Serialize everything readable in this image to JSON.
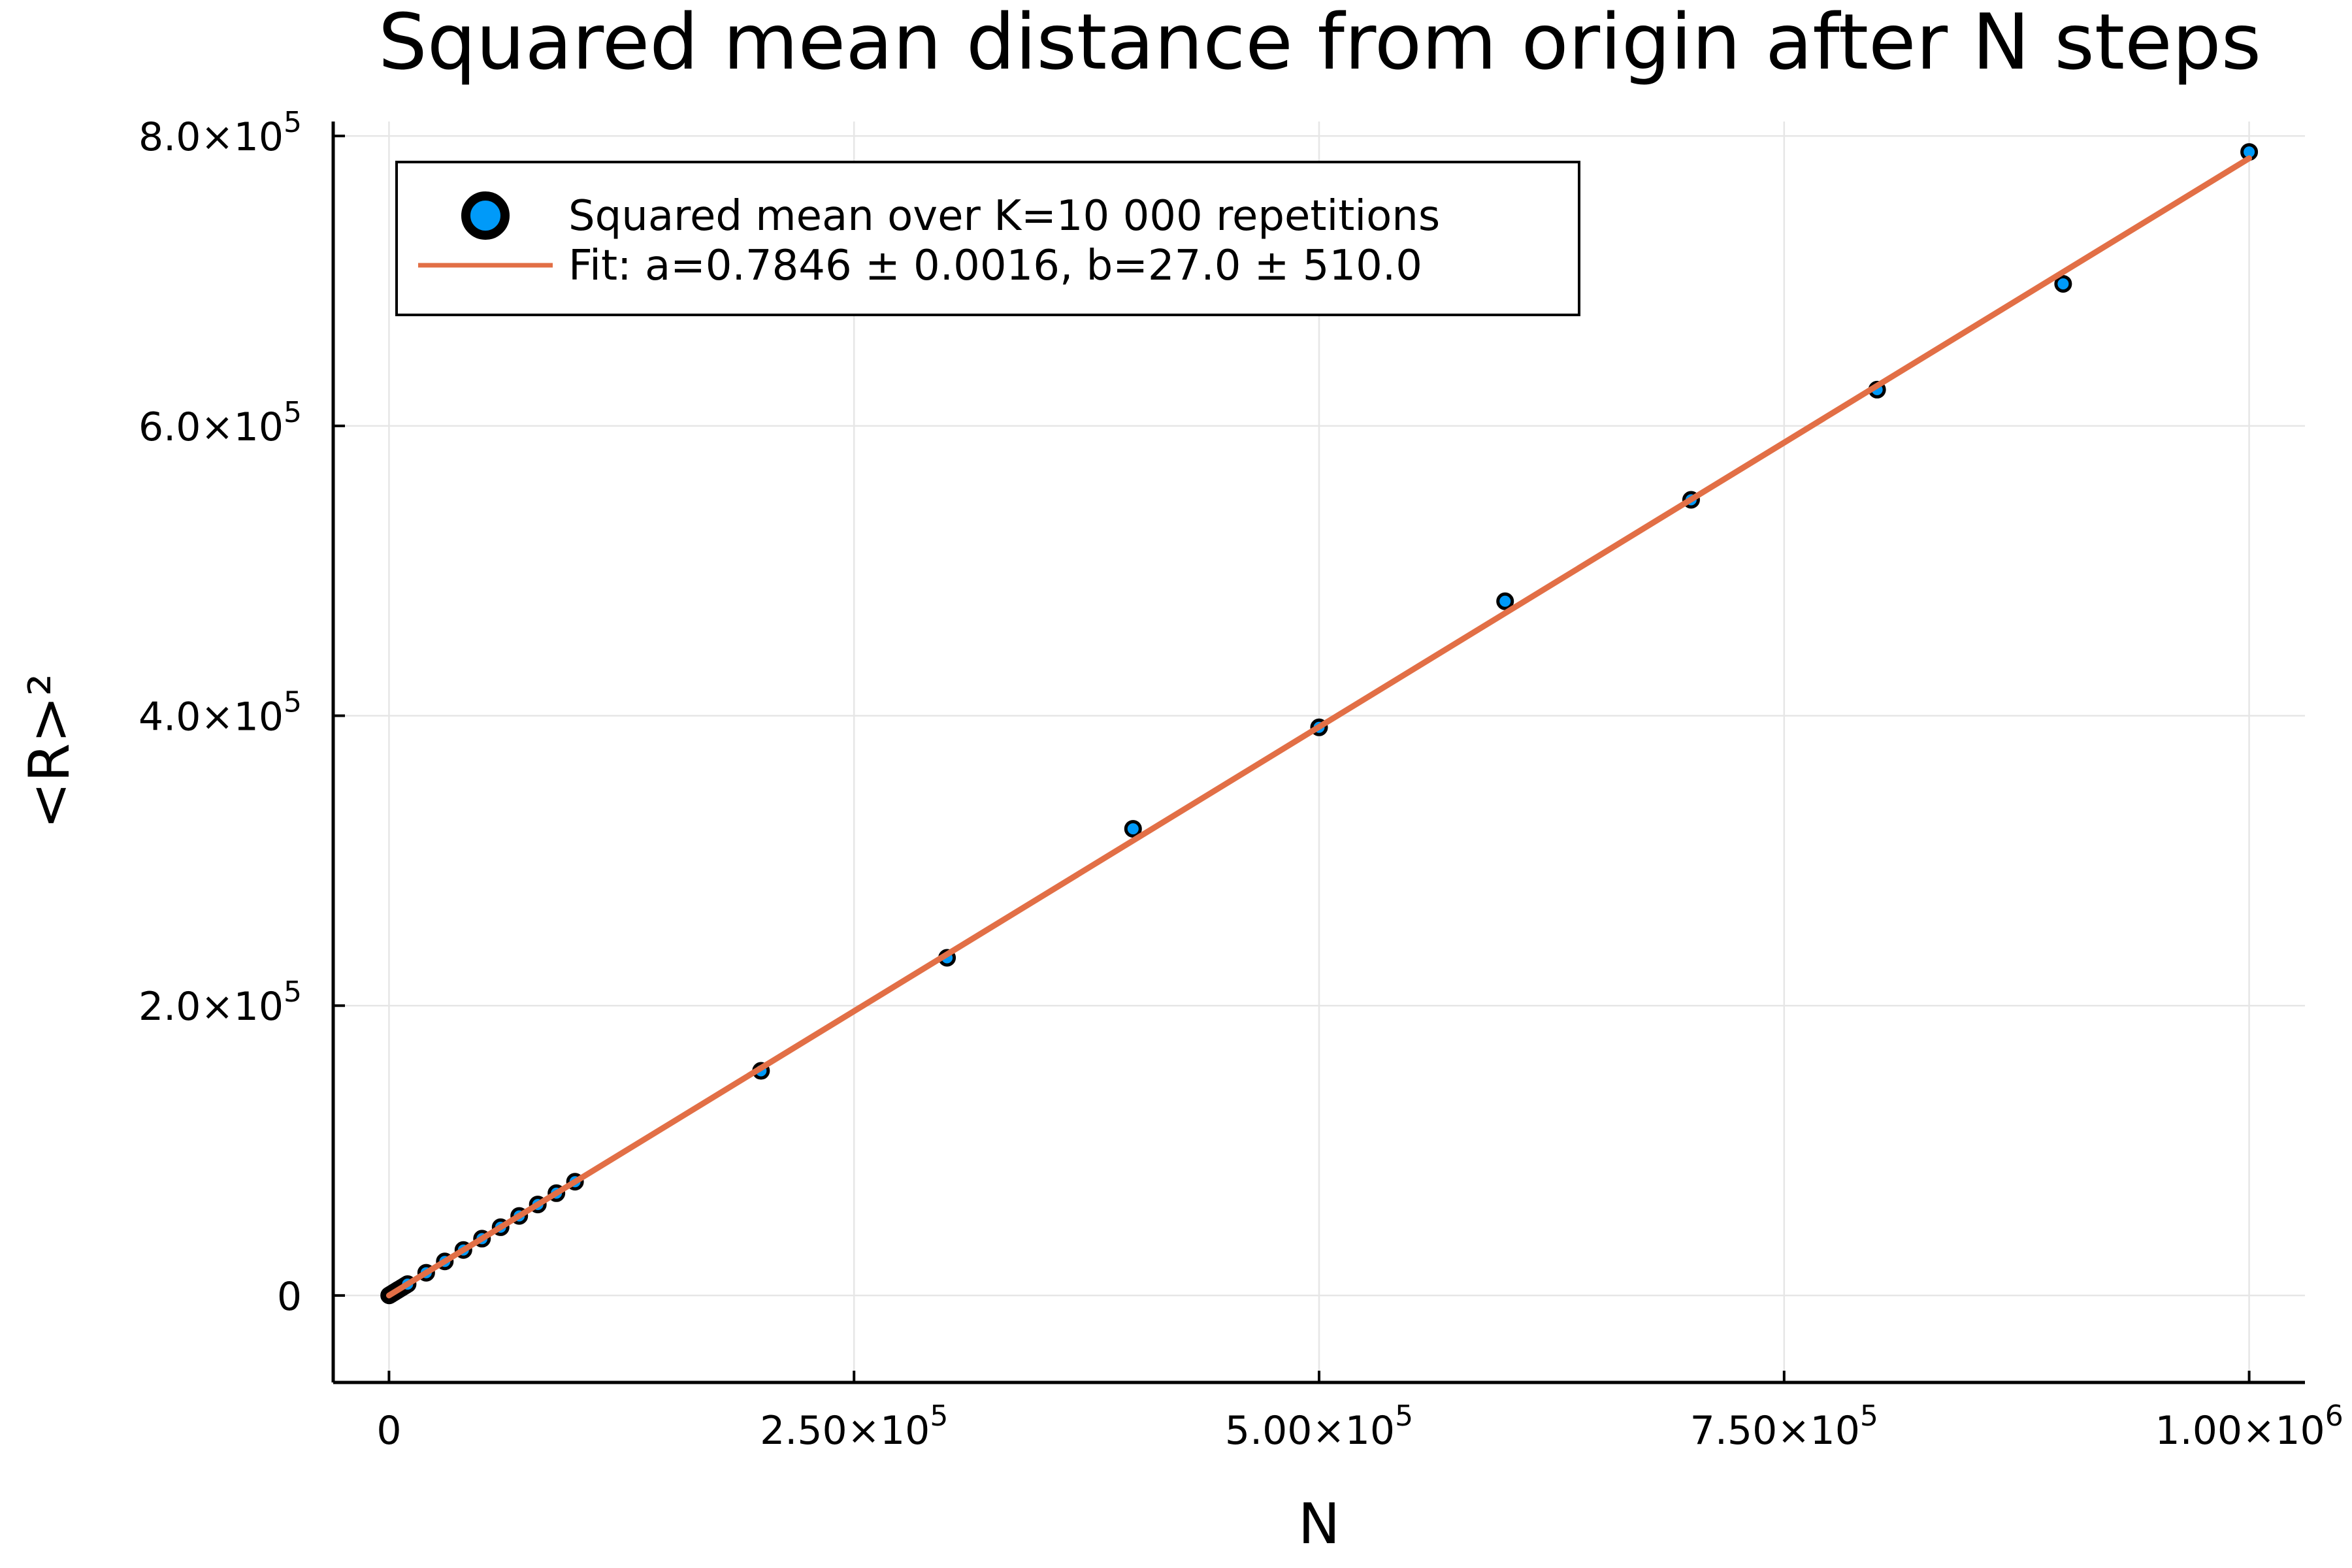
{
  "chart_data": {
    "type": "scatter",
    "title": "Squared mean distance from origin after N steps",
    "xlabel": "N",
    "ylabel": "<R>²",
    "xlim": [
      -30000,
      1030000
    ],
    "ylim": [
      -60000,
      810000
    ],
    "grid": true,
    "legend_position": "top-left",
    "x_ticks": [
      {
        "value": 0,
        "mantissa": "0",
        "exponent": ""
      },
      {
        "value": 250000,
        "mantissa": "2.50×10",
        "exponent": "5"
      },
      {
        "value": 500000,
        "mantissa": "5.00×10",
        "exponent": "5"
      },
      {
        "value": 750000,
        "mantissa": "7.50×10",
        "exponent": "5"
      },
      {
        "value": 1000000,
        "mantissa": "1.00×10",
        "exponent": "6"
      }
    ],
    "y_ticks": [
      {
        "value": 0,
        "mantissa": "0",
        "exponent": ""
      },
      {
        "value": 200000,
        "mantissa": "2.0×10",
        "exponent": "5"
      },
      {
        "value": 400000,
        "mantissa": "4.0×10",
        "exponent": "5"
      },
      {
        "value": 600000,
        "mantissa": "6.0×10",
        "exponent": "5"
      },
      {
        "value": 800000,
        "mantissa": "8.0×10",
        "exponent": "5"
      }
    ],
    "series": [
      {
        "name": "Squared mean over K=10 000 repetitions",
        "kind": "scatter",
        "color": "#009af9",
        "points": [
          [
            100,
            80
          ],
          [
            1000,
            790
          ],
          [
            2000,
            1570
          ],
          [
            3000,
            2360
          ],
          [
            4000,
            3140
          ],
          [
            5000,
            3930
          ],
          [
            6000,
            4700
          ],
          [
            7000,
            5500
          ],
          [
            8000,
            6280
          ],
          [
            9000,
            7060
          ],
          [
            10000,
            7850
          ],
          [
            20000,
            15700
          ],
          [
            30000,
            23500
          ],
          [
            40000,
            31400
          ],
          [
            50000,
            39200
          ],
          [
            60000,
            47100
          ],
          [
            70000,
            54900
          ],
          [
            80000,
            62800
          ],
          [
            90000,
            70600
          ],
          [
            100000,
            78500
          ],
          [
            200000,
            155000
          ],
          [
            300000,
            233000
          ],
          [
            400000,
            322000
          ],
          [
            500000,
            392000
          ],
          [
            600000,
            479000
          ],
          [
            700000,
            549000
          ],
          [
            800000,
            625000
          ],
          [
            900000,
            698000
          ],
          [
            1000000,
            789000
          ]
        ]
      },
      {
        "name": "Fit: a=0.7846 ± 0.0016,  b=27.0 ± 510.0",
        "kind": "line",
        "color": "#e26f46",
        "slope": 0.7846,
        "intercept": 27.0,
        "x_range": [
          0,
          1000000
        ]
      }
    ]
  }
}
